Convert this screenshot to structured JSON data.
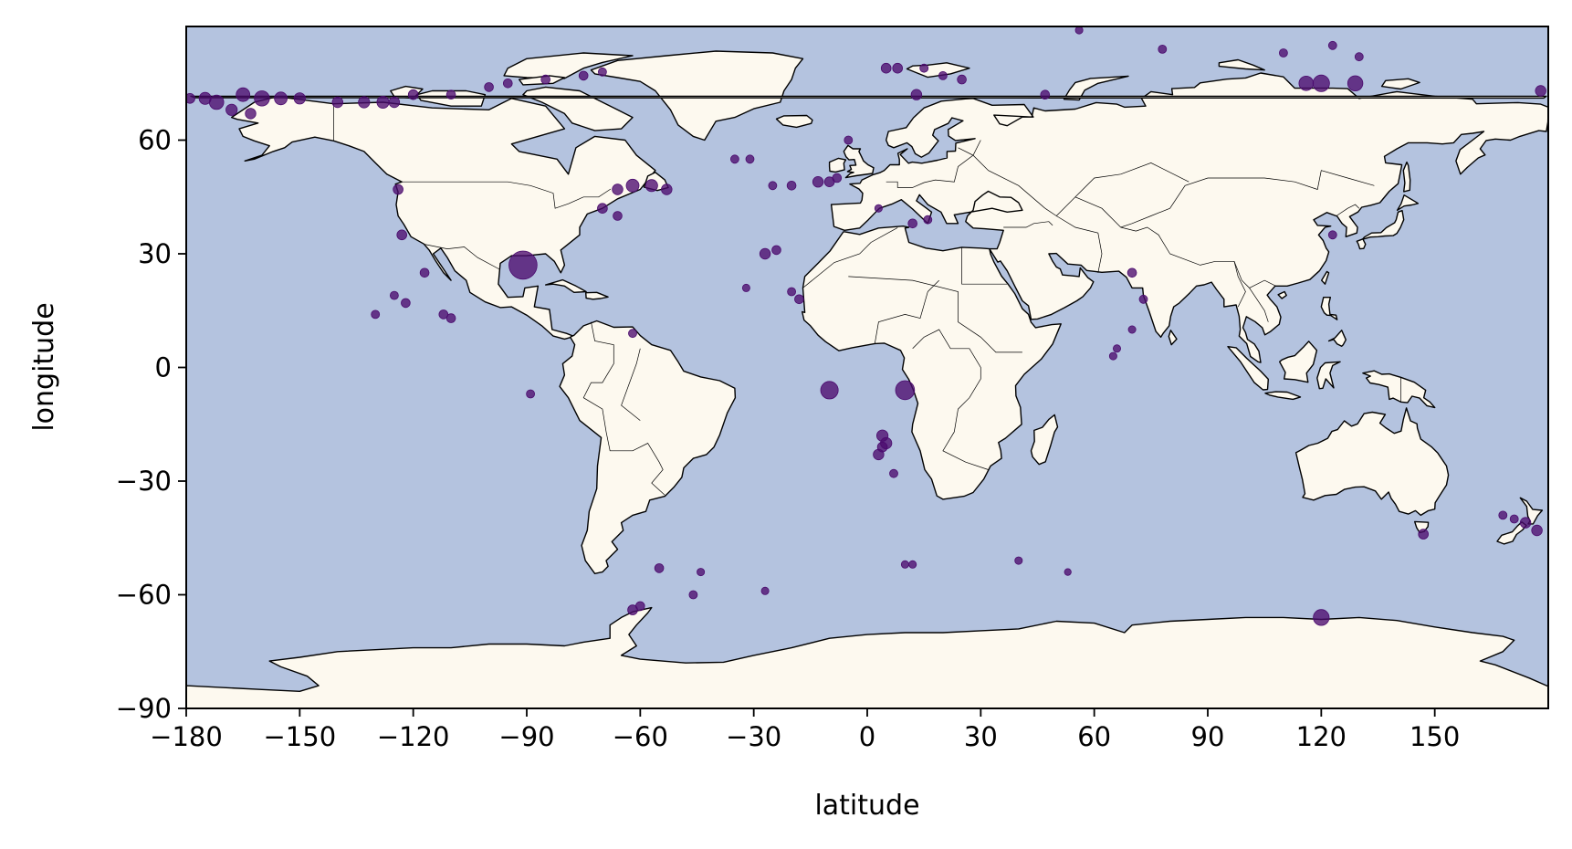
{
  "chart_data": {
    "type": "scatter",
    "title": "",
    "xlabel": "latitude",
    "ylabel": "longitude",
    "xlim": [
      -180,
      180
    ],
    "ylim": [
      -90,
      90
    ],
    "x_ticks": [
      "−180",
      "−150",
      "−120",
      "−90",
      "−60",
      "−30",
      "0",
      "30",
      "60",
      "90",
      "120",
      "150"
    ],
    "y_ticks": [
      "60",
      "30",
      "0",
      "−30",
      "−60",
      "−90"
    ],
    "x_tick_values": [
      -180,
      -150,
      -120,
      -90,
      -60,
      -30,
      0,
      30,
      60,
      90,
      120,
      150
    ],
    "y_tick_values": [
      60,
      30,
      0,
      -30,
      -60,
      -90
    ],
    "grid": false,
    "legend": "none",
    "colors": {
      "ocean": "#b4c3df",
      "land": "#fdf9ef",
      "marker": "#4b0b6e",
      "coast": "#000000"
    },
    "series": [
      {
        "points": [
          {
            "x": -91,
            "y": 27,
            "s": 3.2
          },
          {
            "x": -10,
            "y": -6,
            "s": 1.8
          },
          {
            "x": 10,
            "y": -6,
            "s": 2.0
          },
          {
            "x": 120,
            "y": -66,
            "s": 1.6
          },
          {
            "x": 120,
            "y": 75,
            "s": 1.7
          },
          {
            "x": 116,
            "y": 75,
            "s": 1.4
          },
          {
            "x": 129,
            "y": 75,
            "s": 1.5
          },
          {
            "x": -172,
            "y": 70,
            "s": 1.4
          },
          {
            "x": -160,
            "y": 71,
            "s": 1.5
          },
          {
            "x": -165,
            "y": 72,
            "s": 1.3
          },
          {
            "x": -155,
            "y": 71,
            "s": 1.2
          },
          {
            "x": -150,
            "y": 71,
            "s": 1.0
          },
          {
            "x": -175,
            "y": 71,
            "s": 1.1
          },
          {
            "x": -168,
            "y": 68,
            "s": 1.0
          },
          {
            "x": -163,
            "y": 67,
            "s": 0.9
          },
          {
            "x": -140,
            "y": 70,
            "s": 0.9
          },
          {
            "x": -133,
            "y": 70,
            "s": 1.0
          },
          {
            "x": -128,
            "y": 70,
            "s": 1.1
          },
          {
            "x": -125,
            "y": 70,
            "s": 0.9
          },
          {
            "x": -120,
            "y": 72,
            "s": 0.8
          },
          {
            "x": -110,
            "y": 72,
            "s": 0.7
          },
          {
            "x": -100,
            "y": 74,
            "s": 0.7
          },
          {
            "x": -95,
            "y": 75,
            "s": 0.7
          },
          {
            "x": -85,
            "y": 76,
            "s": 0.7
          },
          {
            "x": -75,
            "y": 77,
            "s": 0.7
          },
          {
            "x": -70,
            "y": 78,
            "s": 0.6
          },
          {
            "x": -62,
            "y": 48,
            "s": 1.2
          },
          {
            "x": -57,
            "y": 48,
            "s": 1.1
          },
          {
            "x": -66,
            "y": 47,
            "s": 0.9
          },
          {
            "x": -53,
            "y": 47,
            "s": 0.9
          },
          {
            "x": -70,
            "y": 42,
            "s": 0.8
          },
          {
            "x": -66,
            "y": 40,
            "s": 0.7
          },
          {
            "x": -124,
            "y": 47,
            "s": 0.8
          },
          {
            "x": -123,
            "y": 35,
            "s": 0.8
          },
          {
            "x": -117,
            "y": 25,
            "s": 0.7
          },
          {
            "x": -122,
            "y": 17,
            "s": 0.7
          },
          {
            "x": -110,
            "y": 13,
            "s": 0.7
          },
          {
            "x": -112,
            "y": 14,
            "s": 0.7
          },
          {
            "x": -130,
            "y": 14,
            "s": 0.6
          },
          {
            "x": -125,
            "y": 19,
            "s": 0.6
          },
          {
            "x": -62,
            "y": 9,
            "s": 0.6
          },
          {
            "x": -89,
            "y": -7,
            "s": 0.6
          },
          {
            "x": -27,
            "y": 30,
            "s": 0.9
          },
          {
            "x": -24,
            "y": 31,
            "s": 0.7
          },
          {
            "x": -32,
            "y": 21,
            "s": 0.5
          },
          {
            "x": -18,
            "y": 18,
            "s": 0.7
          },
          {
            "x": -20,
            "y": 20,
            "s": 0.6
          },
          {
            "x": -20,
            "y": 48,
            "s": 0.7
          },
          {
            "x": -13,
            "y": 49,
            "s": 0.9
          },
          {
            "x": -10,
            "y": 49,
            "s": 0.8
          },
          {
            "x": -8,
            "y": 50,
            "s": 0.7
          },
          {
            "x": -35,
            "y": 55,
            "s": 0.6
          },
          {
            "x": -31,
            "y": 55,
            "s": 0.6
          },
          {
            "x": -25,
            "y": 48,
            "s": 0.6
          },
          {
            "x": 4,
            "y": -18,
            "s": 1.0
          },
          {
            "x": 5,
            "y": -20,
            "s": 1.0
          },
          {
            "x": 3,
            "y": -23,
            "s": 0.9
          },
          {
            "x": 4,
            "y": -21,
            "s": 0.8
          },
          {
            "x": 7,
            "y": -28,
            "s": 0.6
          },
          {
            "x": 12,
            "y": 38,
            "s": 0.7
          },
          {
            "x": 16,
            "y": 39,
            "s": 0.6
          },
          {
            "x": 3,
            "y": 42,
            "s": 0.5
          },
          {
            "x": -5,
            "y": 60,
            "s": 0.6
          },
          {
            "x": 5,
            "y": 79,
            "s": 0.8
          },
          {
            "x": 8,
            "y": 79,
            "s": 0.8
          },
          {
            "x": 15,
            "y": 79,
            "s": 0.6
          },
          {
            "x": 20,
            "y": 77,
            "s": 0.6
          },
          {
            "x": 25,
            "y": 76,
            "s": 0.7
          },
          {
            "x": 13,
            "y": 72,
            "s": 0.9
          },
          {
            "x": 47,
            "y": 72,
            "s": 0.7
          },
          {
            "x": 56,
            "y": 89,
            "s": 0.5
          },
          {
            "x": 78,
            "y": 84,
            "s": 0.6
          },
          {
            "x": 110,
            "y": 83,
            "s": 0.6
          },
          {
            "x": 123,
            "y": 85,
            "s": 0.6
          },
          {
            "x": 130,
            "y": 82,
            "s": 0.6
          },
          {
            "x": 70,
            "y": 25,
            "s": 0.7
          },
          {
            "x": 73,
            "y": 18,
            "s": 0.6
          },
          {
            "x": 65,
            "y": 3,
            "s": 0.5
          },
          {
            "x": 66,
            "y": 5,
            "s": 0.5
          },
          {
            "x": 70,
            "y": 10,
            "s": 0.5
          },
          {
            "x": 123,
            "y": 35,
            "s": 0.6
          },
          {
            "x": 40,
            "y": -51,
            "s": 0.5
          },
          {
            "x": 53,
            "y": -54,
            "s": 0.4
          },
          {
            "x": 10,
            "y": -52,
            "s": 0.5
          },
          {
            "x": 12,
            "y": -52,
            "s": 0.5
          },
          {
            "x": -27,
            "y": -59,
            "s": 0.5
          },
          {
            "x": -46,
            "y": -60,
            "s": 0.6
          },
          {
            "x": -55,
            "y": -53,
            "s": 0.7
          },
          {
            "x": -62,
            "y": -64,
            "s": 0.8
          },
          {
            "x": -60,
            "y": -63,
            "s": 0.7
          },
          {
            "x": -44,
            "y": -54,
            "s": 0.5
          },
          {
            "x": 147,
            "y": -44,
            "s": 0.8
          },
          {
            "x": 174,
            "y": -41,
            "s": 0.9
          },
          {
            "x": 177,
            "y": -43,
            "s": 0.9
          },
          {
            "x": 168,
            "y": -39,
            "s": 0.6
          },
          {
            "x": 171,
            "y": -40,
            "s": 0.6
          },
          {
            "x": 178,
            "y": 73,
            "s": 0.9
          },
          {
            "x": -179,
            "y": 71,
            "s": 0.8
          }
        ]
      }
    ]
  }
}
